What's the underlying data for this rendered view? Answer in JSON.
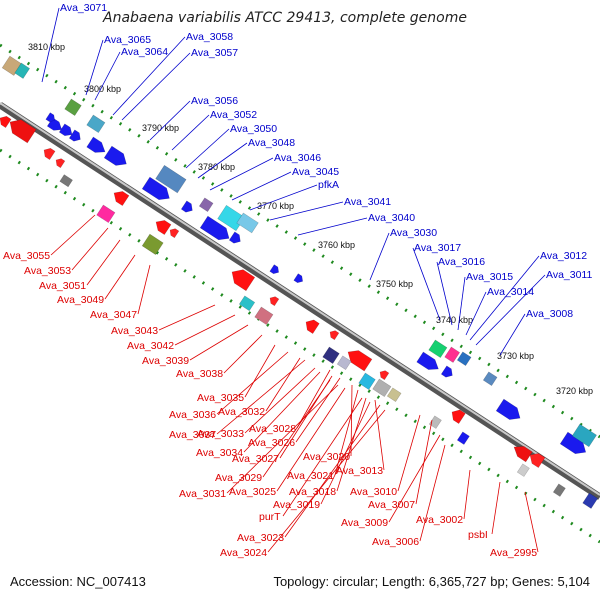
{
  "title": "Anabaena variabilis ATCC 29413, complete genome",
  "accession_text": "Accession: NC_007413",
  "summary_text": "Topology: circular; Length: 6,365,727 bp; Genes: 5,104",
  "colors": {
    "forward_label": "#0000cc",
    "reverse_label": "#dd0000",
    "axis": "#808080",
    "scale_dots": "#1f8a1f"
  },
  "scale_ticks": [
    {
      "label": "3810 kbp",
      "kbp": 3810
    },
    {
      "label": "3800 kbp",
      "kbp": 3800
    },
    {
      "label": "3790 kbp",
      "kbp": 3790
    },
    {
      "label": "3780 kbp",
      "kbp": 3780
    },
    {
      "label": "3770 kbp",
      "kbp": 3770
    },
    {
      "label": "3760 kbp",
      "kbp": 3760
    },
    {
      "label": "3750 kbp",
      "kbp": 3750
    },
    {
      "label": "3740 kbp",
      "kbp": 3740
    },
    {
      "label": "3730 kbp",
      "kbp": 3730
    },
    {
      "label": "3720 kbp",
      "kbp": 3720
    }
  ],
  "forward_labels": [
    "Ava_3071",
    "Ava_3065",
    "Ava_3064",
    "Ava_3058",
    "Ava_3057",
    "Ava_3056",
    "Ava_3052",
    "Ava_3050",
    "Ava_3048",
    "Ava_3046",
    "Ava_3045",
    "pfkA",
    "Ava_3041",
    "Ava_3040",
    "Ava_3030",
    "Ava_3017",
    "Ava_3016",
    "Ava_3015",
    "Ava_3014",
    "Ava_3012",
    "Ava_3011",
    "Ava_3008"
  ],
  "reverse_labels": [
    "Ava_3055",
    "Ava_3053",
    "Ava_3051",
    "Ava_3049",
    "Ava_3047",
    "Ava_3043",
    "Ava_3042",
    "Ava_3039",
    "Ava_3038",
    "Ava_3035",
    "Ava_3036",
    "Ava_3032",
    "Ava_3037",
    "Ava_3033",
    "Ava_3028",
    "Ava_3034",
    "Ava_3026",
    "Ava_3027",
    "Ava_3020",
    "Ava_3029",
    "Ava_3021",
    "Ava_3013",
    "Ava_3025",
    "Ava_3018",
    "Ava_3010",
    "Ava_3031",
    "Ava_3019",
    "Ava_3007",
    "purT",
    "Ava_3009",
    "Ava_3002",
    "Ava_3023",
    "Ava_3006",
    "psbI",
    "Ava_3024",
    "Ava_2995"
  ]
}
